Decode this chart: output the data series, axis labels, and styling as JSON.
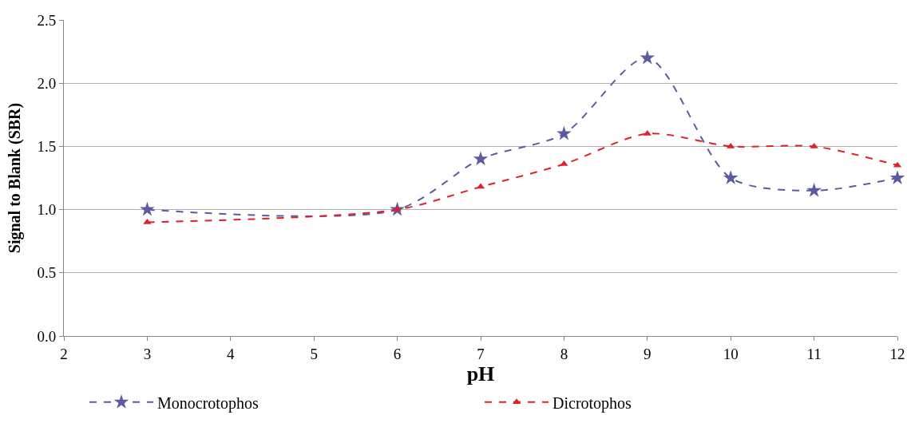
{
  "chart_data": {
    "type": "line",
    "xlabel": "pH",
    "ylabel": "Signal to Blank (SBR)",
    "xlim": [
      2,
      12
    ],
    "xticks": [
      2,
      3,
      4,
      5,
      6,
      7,
      8,
      9,
      10,
      11,
      12
    ],
    "ylim": [
      0,
      2.5
    ],
    "yticks": [
      {
        "value": 0,
        "label": "0.0"
      },
      {
        "value": 0.5,
        "label": "0.5"
      },
      {
        "value": 1,
        "label": "1.0"
      },
      {
        "value": 1.5,
        "label": "1.5"
      },
      {
        "value": 2,
        "label": "2.0"
      },
      {
        "value": 2.5,
        "label": "2.5"
      }
    ],
    "grid": "y",
    "legend": "bottom",
    "line_style": "dashed",
    "series": [
      {
        "name": "Monocrotophos",
        "color": "#5b5ba0",
        "marker": "star",
        "x": [
          3,
          6,
          7,
          8,
          9,
          10,
          11,
          12
        ],
        "values": [
          1.0,
          1.0,
          1.4,
          1.6,
          2.2,
          1.25,
          1.15,
          1.25
        ]
      },
      {
        "name": "Dicrotophos",
        "color": "#e0202a",
        "marker": "triangle",
        "x": [
          3,
          6,
          7,
          8,
          9,
          10,
          11,
          12
        ],
        "values": [
          0.9,
          1.0,
          1.18,
          1.36,
          1.6,
          1.5,
          1.5,
          1.35
        ]
      }
    ]
  }
}
